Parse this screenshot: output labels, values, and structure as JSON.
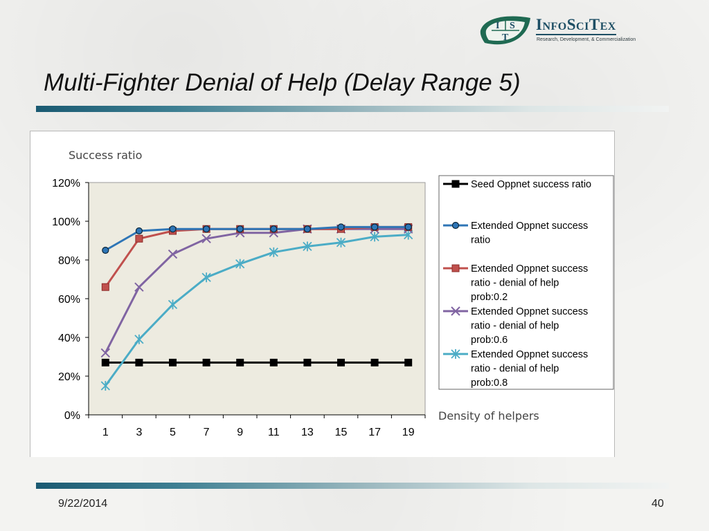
{
  "slide": {
    "title": "Multi-Fighter Denial of Help (Delay Range 5)",
    "date": "9/22/2014",
    "page_number": "40"
  },
  "logo": {
    "letters": [
      "I",
      "S",
      "T"
    ],
    "brand": "InfoSciTex",
    "tagline": "Research, Development, & Commercialization"
  },
  "colors": {
    "accent": "#1a5a72",
    "plot_bg": "#edebe0"
  },
  "chart_data": {
    "type": "line",
    "ylabel": "Success  ratio",
    "xlabel": "Density of helpers",
    "categories": [
      "1",
      "3",
      "5",
      "7",
      "9",
      "11",
      "13",
      "15",
      "17",
      "19"
    ],
    "ylim": [
      0,
      120
    ],
    "yticks": [
      0,
      20,
      40,
      60,
      80,
      100,
      120
    ],
    "ytick_labels": [
      "0%",
      "20%",
      "40%",
      "60%",
      "80%",
      "100%",
      "120%"
    ],
    "grid": false,
    "legend_position": "right",
    "series": [
      {
        "name": "Seed Oppnet success ratio",
        "legend_lines": [
          "Seed Oppnet success ratio"
        ],
        "color": "#000000",
        "marker": "square",
        "values": [
          27,
          27,
          27,
          27,
          27,
          27,
          27,
          27,
          27,
          27
        ]
      },
      {
        "name": "Extended Oppnet success ratio",
        "legend_lines": [
          "Extended Oppnet success",
          "ratio"
        ],
        "color": "#2e75b6",
        "marker": "circle",
        "values": [
          85,
          95,
          96,
          96,
          96,
          96,
          96,
          97,
          97,
          97
        ]
      },
      {
        "name": "Extended Oppnet success ratio - denial of help prob:0.2",
        "legend_lines": [
          "Extended Oppnet success",
          "ratio - denial of help",
          "prob:0.2"
        ],
        "color": "#c0504d",
        "marker": "square",
        "values": [
          66,
          91,
          95,
          96,
          96,
          96,
          96,
          96,
          97,
          97
        ]
      },
      {
        "name": "Extended Oppnet success ratio - denial of help prob:0.6",
        "legend_lines": [
          "Extended Oppnet success",
          "ratio - denial of help",
          "prob:0.6"
        ],
        "color": "#8064a2",
        "marker": "x",
        "values": [
          32,
          66,
          83,
          91,
          94,
          94,
          96,
          96,
          96,
          96
        ]
      },
      {
        "name": "Extended Oppnet success ratio - denial of help prob:0.8",
        "legend_lines": [
          "Extended Oppnet success",
          "ratio - denial of help",
          "prob:0.8"
        ],
        "color": "#4bacc6",
        "marker": "star",
        "values": [
          15,
          39,
          57,
          71,
          78,
          84,
          87,
          89,
          92,
          93
        ]
      }
    ]
  }
}
